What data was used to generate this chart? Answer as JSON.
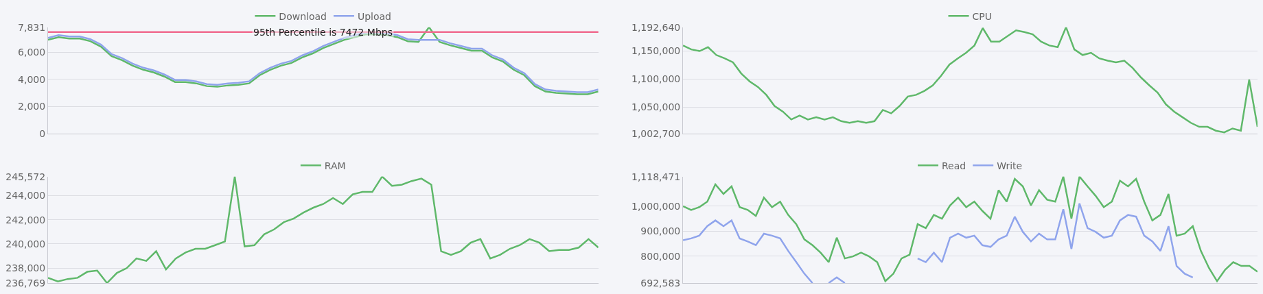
{
  "chart_data": [
    {
      "type": "line",
      "categories": [
        null,
        null,
        null,
        null,
        null,
        null,
        null,
        null,
        null,
        null,
        null,
        null,
        null,
        null,
        null,
        null,
        null,
        null,
        null,
        null,
        null,
        null,
        null,
        null,
        null,
        null,
        null,
        null,
        null,
        null,
        null,
        null,
        null,
        null,
        null,
        null,
        null,
        null,
        null,
        null,
        null,
        null,
        null,
        null,
        null,
        null,
        null,
        null,
        null,
        null,
        null,
        null,
        null
      ],
      "series": [
        {
          "name": "Download",
          "color": "#5fb86a",
          "values": [
            6900,
            7100,
            7000,
            7000,
            6800,
            6400,
            5700,
            5400,
            5000,
            4700,
            4500,
            4200,
            3800,
            3800,
            3700,
            3500,
            3450,
            3550,
            3600,
            3700,
            4300,
            4700,
            5000,
            5200,
            5600,
            5900,
            6300,
            6600,
            6900,
            7100,
            7300,
            7300,
            7250,
            7100,
            6800,
            6750,
            7831,
            6750,
            6500,
            6300,
            6100,
            6100,
            5600,
            5300,
            4700,
            4300,
            3500,
            3100,
            3000,
            2950,
            2900,
            2900,
            3100
          ]
        },
        {
          "name": "Upload",
          "color": "#8fa4ec",
          "values": [
            7050,
            7250,
            7150,
            7150,
            6950,
            6550,
            5850,
            5550,
            5150,
            4850,
            4650,
            4350,
            3950,
            3950,
            3850,
            3650,
            3600,
            3700,
            3750,
            3850,
            4450,
            4850,
            5150,
            5350,
            5750,
            6050,
            6450,
            6750,
            7050,
            7250,
            7450,
            7450,
            7400,
            7250,
            6950,
            6900,
            6900,
            6900,
            6650,
            6450,
            6250,
            6250,
            5750,
            5450,
            4850,
            4450,
            3650,
            3250,
            3150,
            3100,
            3050,
            3050,
            3250
          ]
        }
      ],
      "ylim": [
        0,
        7831
      ],
      "yticks": [
        0,
        {
          "value": 2000,
          "label": "2,000"
        },
        {
          "value": 4000,
          "label": "4,000"
        },
        {
          "value": 6000,
          "label": "6,000"
        },
        {
          "value": 7831,
          "label": "7,831"
        }
      ],
      "ref_lines": [
        {
          "axis": "y",
          "value": 7472,
          "label": "95th Percentile is 7472 Mbps",
          "color": "#f06b8f"
        }
      ],
      "grid": "y",
      "legend": "top",
      "tick_labels": "y"
    },
    {
      "type": "line",
      "categories": [
        null,
        null,
        null,
        null,
        null,
        null,
        null,
        null,
        null,
        null,
        null,
        null,
        null,
        null,
        null,
        null,
        null,
        null,
        null,
        null,
        null,
        null,
        null,
        null,
        null,
        null,
        null,
        null,
        null,
        null,
        null,
        null,
        null,
        null,
        null,
        null,
        null,
        null,
        null,
        null,
        null,
        null,
        null,
        null,
        null,
        null,
        null,
        null,
        null,
        null,
        null,
        null,
        null,
        null,
        null,
        null,
        null,
        null,
        null,
        null,
        null,
        null,
        null,
        null,
        null,
        null,
        null,
        null,
        null,
        null
      ],
      "series": [
        {
          "name": "CPU",
          "color": "#5fb86a",
          "values": [
            1160000,
            1153000,
            1150000,
            1157000,
            1143000,
            1137000,
            1130000,
            1110000,
            1096000,
            1086000,
            1072000,
            1052000,
            1042000,
            1028000,
            1035000,
            1028000,
            1032000,
            1028000,
            1032000,
            1025000,
            1022000,
            1025000,
            1022000,
            1025000,
            1045000,
            1039000,
            1052000,
            1069000,
            1072000,
            1079000,
            1089000,
            1106000,
            1126000,
            1137000,
            1147000,
            1160000,
            1191000,
            1167000,
            1167000,
            1177000,
            1187000,
            1184000,
            1180000,
            1167000,
            1160000,
            1157000,
            1192640,
            1153000,
            1143000,
            1147000,
            1137000,
            1133000,
            1130000,
            1133000,
            1120000,
            1103000,
            1089000,
            1076000,
            1055000,
            1042000,
            1032000,
            1022000,
            1015000,
            1015000,
            1008000,
            1005000,
            1012000,
            1008000,
            1099000,
            1015000
          ]
        }
      ],
      "ylim": [
        1002700,
        1192640
      ],
      "yticks": [
        {
          "value": 1002700,
          "label": "1,002,700"
        },
        {
          "value": 1050000,
          "label": "1,050,000"
        },
        {
          "value": 1100000,
          "label": "1,100,000"
        },
        {
          "value": 1150000,
          "label": "1,150,000"
        },
        {
          "value": 1192640,
          "label": "1,192,640"
        }
      ],
      "grid": "y",
      "legend": "top",
      "tick_labels": "y"
    },
    {
      "type": "line",
      "categories": [
        null,
        null,
        null,
        null,
        null,
        null,
        null,
        null,
        null,
        null,
        null,
        null,
        null,
        null,
        null,
        null,
        null,
        null,
        null,
        null,
        null,
        null,
        null,
        null,
        null,
        null,
        null,
        null,
        null,
        null,
        null,
        null,
        null,
        null,
        null,
        null,
        null,
        null,
        null,
        null,
        null,
        null,
        null,
        null,
        null,
        null,
        null,
        null,
        null,
        null,
        null,
        null,
        null,
        null,
        null,
        null,
        null
      ],
      "series": [
        {
          "name": "RAM",
          "color": "#5fb86a",
          "values": [
            237200,
            236900,
            237100,
            237200,
            237700,
            237800,
            236769,
            237600,
            238000,
            238800,
            238600,
            239400,
            237900,
            238800,
            239300,
            239600,
            239600,
            239900,
            240200,
            245572,
            239800,
            239900,
            240800,
            241200,
            241800,
            242100,
            242600,
            243000,
            243300,
            243800,
            243300,
            244100,
            244300,
            244300,
            245572,
            244800,
            244900,
            245200,
            245400,
            244900,
            239400,
            239100,
            239400,
            240100,
            240400,
            238800,
            239100,
            239600,
            239900,
            240400,
            240100,
            239400,
            239500,
            239500,
            239700,
            240400,
            239700
          ]
        }
      ],
      "ylim": [
        236769,
        245572
      ],
      "yticks": [
        {
          "value": 236769,
          "label": "236,769"
        },
        {
          "value": 238000,
          "label": "238,000"
        },
        {
          "value": 240000,
          "label": "240,000"
        },
        {
          "value": 242000,
          "label": "242,000"
        },
        {
          "value": 244000,
          "label": "244,000"
        },
        {
          "value": 245572,
          "label": "245,572"
        }
      ],
      "grid": "y",
      "legend": "top",
      "tick_labels": "y"
    },
    {
      "type": "line",
      "categories": [
        null,
        null,
        null,
        null,
        null,
        null,
        null,
        null,
        null,
        null,
        null,
        null,
        null,
        null,
        null,
        null,
        null,
        null,
        null,
        null,
        null,
        null,
        null,
        null,
        null,
        null,
        null,
        null,
        null,
        null,
        null,
        null,
        null,
        null,
        null,
        null,
        null,
        null,
        null,
        null,
        null,
        null,
        null,
        null,
        null,
        null,
        null,
        null,
        null,
        null,
        null,
        null,
        null,
        null,
        null,
        null,
        null,
        null,
        null,
        null,
        null,
        null,
        null,
        null,
        null,
        null,
        null,
        null,
        null,
        null,
        null,
        null
      ],
      "series": [
        {
          "name": "Read",
          "color": "#5fb86a",
          "values": [
            1000000,
            985000,
            996000,
            1018000,
            1087000,
            1049000,
            1079000,
            996000,
            985000,
            961000,
            1034000,
            996000,
            1018000,
            965000,
            928000,
            867000,
            844000,
            814000,
            776000,
            874000,
            791000,
            799000,
            814000,
            799000,
            776000,
            700000,
            730000,
            791000,
            806000,
            928000,
            912000,
            965000,
            950000,
            1003000,
            1034000,
            996000,
            1018000,
            981000,
            950000,
            1064000,
            1018000,
            1109000,
            1079000,
            1003000,
            1064000,
            1026000,
            1018000,
            1118471,
            950000,
            1118471,
            1079000,
            1041000,
            996000,
            1018000,
            1102000,
            1079000,
            1109000,
            1018000,
            943000,
            965000,
            1049000,
            882000,
            890000,
            920000,
            821000,
            753000,
            700000,
            746000,
            776000,
            761000,
            761000,
            738000
          ]
        },
        {
          "name": "Write",
          "color": "#8fa4ec",
          "values": [
            864000,
            871000,
            882000,
            920000,
            943000,
            920000,
            943000,
            871000,
            859000,
            844000,
            890000,
            882000,
            871000,
            821000,
            776000,
            730000,
            692583,
            null,
            692583,
            715000,
            692583,
            null,
            null,
            null,
            null,
            null,
            null,
            null,
            null,
            791000,
            776000,
            814000,
            776000,
            874000,
            890000,
            874000,
            882000,
            844000,
            837000,
            867000,
            882000,
            958000,
            897000,
            859000,
            890000,
            867000,
            867000,
            988000,
            829000,
            1011000,
            912000,
            897000,
            874000,
            882000,
            943000,
            965000,
            958000,
            882000,
            859000,
            821000,
            920000,
            761000,
            730000,
            715000,
            null,
            null,
            null,
            null,
            null,
            null,
            null,
            null
          ]
        }
      ],
      "ylim": [
        692583,
        1118471
      ],
      "yticks": [
        {
          "value": 692583,
          "label": "692,583"
        },
        {
          "value": 800000,
          "label": "800,000"
        },
        {
          "value": 900000,
          "label": "900,000"
        },
        {
          "value": 1000000,
          "label": "1,000,000"
        },
        {
          "value": 1118471,
          "label": "1,118,471"
        }
      ],
      "grid": "y",
      "legend": "top",
      "tick_labels": "y"
    }
  ]
}
